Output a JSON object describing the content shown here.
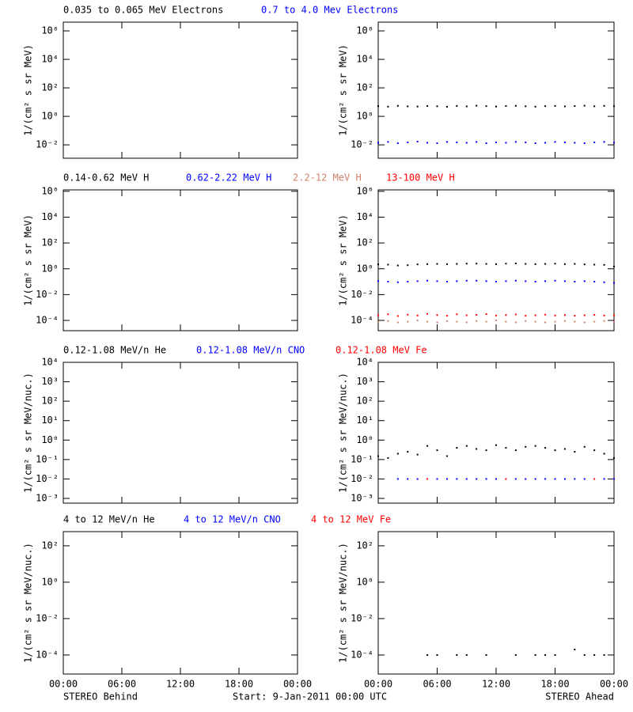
{
  "footer": {
    "left": "STEREO Behind",
    "center": "Start:  9-Jan-2011 00:00 UTC",
    "right": "STEREO Ahead"
  },
  "chart_data": [
    {
      "type": "scatter",
      "ylabel": "1/(cm² s sr MeV)",
      "log_y": true,
      "xlim": [
        0,
        24
      ],
      "xticks": [
        {
          "value": 0,
          "label": "00:00"
        },
        {
          "value": 6,
          "label": "06:00"
        },
        {
          "value": 12,
          "label": "12:00"
        },
        {
          "value": 18,
          "label": "18:00"
        },
        {
          "value": 24,
          "label": "00:00"
        }
      ],
      "ylim": [
        0.00115,
        4100000
      ],
      "yticks": [
        {
          "value": 0.01,
          "label": "10⁻²"
        },
        {
          "value": 1,
          "label": "10⁰"
        },
        {
          "value": 100,
          "label": "10²"
        },
        {
          "value": 10000,
          "label": "10⁴"
        },
        {
          "value": 1000000,
          "label": "10⁶"
        }
      ],
      "x": [
        0,
        1,
        2,
        3,
        4,
        5,
        6,
        7,
        8,
        9,
        10,
        11,
        12,
        13,
        14,
        15,
        16,
        17,
        18,
        19,
        20,
        21,
        22,
        23,
        24
      ],
      "series": [
        {
          "name": "0.035 to 0.065 MeV Electrons",
          "color": "#000000",
          "values": [
            5.2,
            4.8,
            5.5,
            5.0,
            4.9,
            5.3,
            5.1,
            4.7,
            5.4,
            5.0,
            5.6,
            5.2,
            4.9,
            5.3,
            5.5,
            5.1,
            4.8,
            5.2,
            5.4,
            5.0,
            5.3,
            5.6,
            5.1,
            5.5,
            5.2
          ]
        },
        {
          "name": "0.7 to 4.0 Mev Electrons",
          "color": "#0000ff",
          "values": [
            0.014,
            0.016,
            0.013,
            0.015,
            0.017,
            0.014,
            0.013,
            0.016,
            0.015,
            0.014,
            0.016,
            0.013,
            0.015,
            0.014,
            0.016,
            0.015,
            0.013,
            0.014,
            0.016,
            0.015,
            0.014,
            0.013,
            0.015,
            0.016,
            0.014
          ]
        }
      ]
    },
    {
      "type": "scatter",
      "ylabel": "1/(cm² s sr MeV)",
      "log_y": true,
      "xlim": [
        0,
        24
      ],
      "xticks": [
        {
          "value": 0,
          "label": "00:00"
        },
        {
          "value": 6,
          "label": "06:00"
        },
        {
          "value": 12,
          "label": "12:00"
        },
        {
          "value": 18,
          "label": "18:00"
        },
        {
          "value": 24,
          "label": "00:00"
        }
      ],
      "ylim": [
        1.6e-05,
        1300000
      ],
      "yticks": [
        {
          "value": 0.0001,
          "label": "10⁻⁴"
        },
        {
          "value": 0.01,
          "label": "10⁻²"
        },
        {
          "value": 1,
          "label": "10⁰"
        },
        {
          "value": 100,
          "label": "10²"
        },
        {
          "value": 10000,
          "label": "10⁴"
        },
        {
          "value": 1000000,
          "label": "10⁶"
        }
      ],
      "x": [
        0,
        1,
        2,
        3,
        4,
        5,
        6,
        7,
        8,
        9,
        10,
        11,
        12,
        13,
        14,
        15,
        16,
        17,
        18,
        19,
        20,
        21,
        22,
        23,
        24
      ],
      "series": [
        {
          "name": "0.14-0.62 MeV H",
          "color": "#000000",
          "values": [
            2.2,
            2.1,
            1.8,
            1.9,
            2.2,
            2.3,
            2.4,
            2.3,
            2.4,
            2.5,
            2.5,
            2.4,
            2.3,
            2.5,
            2.6,
            2.4,
            2.3,
            2.4,
            2.5,
            2.3,
            2.4,
            2.2,
            2.1,
            2.0,
            1.5
          ]
        },
        {
          "name": "0.62-2.22 MeV H",
          "color": "#0000ff",
          "values": [
            0.11,
            0.1,
            0.09,
            0.1,
            0.11,
            0.12,
            0.11,
            0.1,
            0.11,
            0.12,
            0.12,
            0.11,
            0.1,
            0.11,
            0.12,
            0.11,
            0.1,
            0.11,
            0.12,
            0.11,
            0.1,
            0.11,
            0.1,
            0.09,
            0.08
          ]
        },
        {
          "name": "2.2-12 MeV H",
          "color": "#d0806a",
          "values": [
            8e-05,
            9e-05,
            7e-05,
            8e-05,
            0.0001,
            8e-05,
            7e-05,
            9e-05,
            8e-05,
            7e-05,
            9e-05,
            8e-05,
            0.0001,
            8e-05,
            7e-05,
            9e-05,
            8e-05,
            7e-05,
            8e-05,
            9e-05,
            8e-05,
            7e-05,
            8e-05,
            9e-05,
            8e-05
          ]
        },
        {
          "name": "13-100 MeV H",
          "color": "#ff0000",
          "values": [
            0.00025,
            0.0003,
            0.00022,
            0.00028,
            0.00024,
            0.00032,
            0.00026,
            0.00023,
            0.0003,
            0.00025,
            0.00027,
            0.00031,
            0.00024,
            0.00026,
            0.00029,
            0.00023,
            0.00025,
            0.00028,
            0.00024,
            0.00026,
            0.00023,
            0.00025,
            0.00027,
            0.00024,
            0.00025
          ]
        }
      ]
    },
    {
      "type": "scatter",
      "ylabel": "1/(cm² s sr MeV/nuc.)",
      "log_y": true,
      "xlim": [
        0,
        24
      ],
      "xticks": [
        {
          "value": 0,
          "label": "00:00"
        },
        {
          "value": 6,
          "label": "06:00"
        },
        {
          "value": 12,
          "label": "12:00"
        },
        {
          "value": 18,
          "label": "18:00"
        },
        {
          "value": 24,
          "label": "00:00"
        }
      ],
      "ylim": [
        0.00057,
        10000
      ],
      "yticks": [
        {
          "value": 0.001,
          "label": "10⁻³"
        },
        {
          "value": 0.01,
          "label": "10⁻²"
        },
        {
          "value": 0.1,
          "label": "10⁻¹"
        },
        {
          "value": 1,
          "label": "10⁰"
        },
        {
          "value": 10,
          "label": "10¹"
        },
        {
          "value": 100,
          "label": "10²"
        },
        {
          "value": 1000,
          "label": "10³"
        },
        {
          "value": 10000,
          "label": "10⁴"
        }
      ],
      "x": [
        0,
        1,
        2,
        3,
        4,
        5,
        6,
        7,
        8,
        9,
        10,
        11,
        12,
        13,
        14,
        15,
        16,
        17,
        18,
        19,
        20,
        21,
        22,
        23,
        24
      ],
      "series": [
        {
          "name": "0.12-1.08 MeV/n He",
          "color": "#000000",
          "values": [
            0.15,
            0.12,
            0.2,
            0.25,
            0.18,
            0.5,
            0.3,
            0.15,
            0.4,
            0.5,
            0.35,
            0.3,
            0.55,
            0.4,
            0.3,
            0.45,
            0.5,
            0.4,
            0.3,
            0.35,
            0.25,
            0.45,
            0.3,
            0.2,
            0.12
          ]
        },
        {
          "name": "0.12-1.08 MeV/n CNO",
          "color": "#0000ff",
          "values": [
            null,
            null,
            0.01,
            0.01,
            0.01,
            null,
            0.01,
            0.01,
            0.01,
            0.01,
            0.01,
            0.01,
            0.01,
            null,
            0.01,
            0.01,
            0.01,
            0.01,
            0.01,
            0.01,
            0.01,
            0.01,
            null,
            0.01,
            0.01
          ]
        },
        {
          "name": "0.12-1.08 MeV Fe",
          "color": "#ff0000",
          "values": [
            null,
            null,
            null,
            null,
            null,
            0.01,
            null,
            null,
            null,
            null,
            null,
            null,
            null,
            0.01,
            null,
            null,
            null,
            null,
            null,
            null,
            null,
            null,
            0.01,
            null,
            null
          ]
        }
      ]
    },
    {
      "type": "scatter",
      "ylabel": "1/(cm² s sr MeV/nuc.)",
      "log_y": true,
      "xlim": [
        0,
        24
      ],
      "xticks": [
        {
          "value": 0,
          "label": "00:00"
        },
        {
          "value": 6,
          "label": "06:00"
        },
        {
          "value": 12,
          "label": "12:00"
        },
        {
          "value": 18,
          "label": "18:00"
        },
        {
          "value": 24,
          "label": "00:00"
        }
      ],
      "ylim": [
        9e-06,
        600
      ],
      "yticks": [
        {
          "value": 0.0001,
          "label": "10⁻⁴"
        },
        {
          "value": 0.01,
          "label": "10⁻²"
        },
        {
          "value": 1,
          "label": "10⁰"
        },
        {
          "value": 100,
          "label": "10²"
        }
      ],
      "x": [
        0,
        1,
        2,
        3,
        4,
        5,
        6,
        7,
        8,
        9,
        10,
        11,
        12,
        13,
        14,
        15,
        16,
        17,
        18,
        19,
        20,
        21,
        22,
        23,
        24
      ],
      "series": [
        {
          "name": "4 to 12 MeV/n He",
          "color": "#000000",
          "values": [
            null,
            null,
            null,
            null,
            null,
            0.0001,
            0.0001,
            null,
            0.0001,
            0.0001,
            null,
            0.0001,
            null,
            null,
            0.0001,
            null,
            0.0001,
            0.0001,
            0.0001,
            null,
            0.0002,
            0.0001,
            0.0001,
            0.0001,
            null
          ]
        },
        {
          "name": "4 to 12 MeV/n CNO",
          "color": "#0000ff",
          "values": [
            null,
            null,
            null,
            null,
            null,
            null,
            null,
            null,
            null,
            null,
            null,
            null,
            null,
            null,
            null,
            null,
            null,
            null,
            null,
            null,
            null,
            null,
            null,
            null,
            null
          ]
        },
        {
          "name": "4 to 12 MeV Fe",
          "color": "#ff0000",
          "values": [
            null,
            null,
            null,
            null,
            null,
            null,
            null,
            null,
            null,
            null,
            null,
            null,
            null,
            null,
            null,
            null,
            null,
            null,
            null,
            null,
            null,
            null,
            null,
            null,
            null
          ]
        }
      ]
    }
  ]
}
